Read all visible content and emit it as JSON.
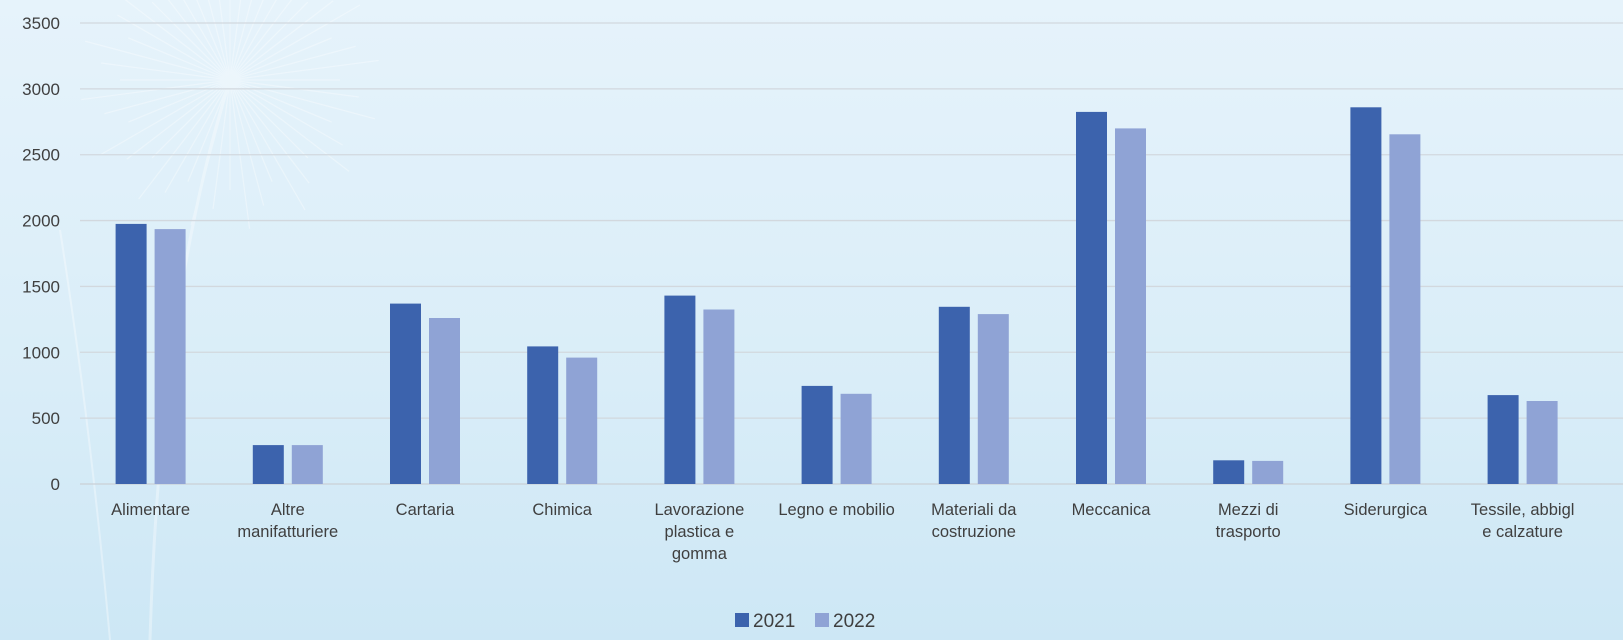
{
  "chart_data": {
    "type": "bar",
    "title": "",
    "xlabel": "",
    "ylabel": "",
    "ylim": [
      0,
      3500
    ],
    "yticks": [
      0,
      500,
      1000,
      1500,
      2000,
      2500,
      3000,
      3500
    ],
    "grid": true,
    "legend_position": "bottom",
    "categories": [
      "Alimentare",
      "Altre manifatturiere",
      "Cartaria",
      "Chimica",
      "Lavorazione plastica e gomma",
      "Legno e mobilio",
      "Materiali da costruzione",
      "Meccanica",
      "Mezzi di trasporto",
      "Siderurgica",
      "Tessile, abbigl e calzature"
    ],
    "category_label_lines": [
      [
        "Alimentare"
      ],
      [
        "Altre",
        "manifatturiere"
      ],
      [
        "Cartaria"
      ],
      [
        "Chimica"
      ],
      [
        "Lavorazione",
        "plastica e",
        "gomma"
      ],
      [
        "Legno e mobilio"
      ],
      [
        "Materiali da",
        "costruzione"
      ],
      [
        "Meccanica"
      ],
      [
        "Mezzi di",
        "trasporto"
      ],
      [
        "Siderurgica"
      ],
      [
        "Tessile, abbigl",
        "e calzature"
      ]
    ],
    "series": [
      {
        "name": "2021",
        "color": "#3c63ad",
        "values": [
          1975,
          295,
          1370,
          1045,
          1430,
          745,
          1345,
          2825,
          180,
          2860,
          675
        ]
      },
      {
        "name": "2022",
        "color": "#8fa3d5",
        "values": [
          1935,
          295,
          1260,
          960,
          1325,
          685,
          1290,
          2700,
          175,
          2655,
          630
        ]
      }
    ],
    "colors": {
      "gridline": "#d2d8de",
      "axis_line": "#c9d0d6",
      "text": "#3f3f3f"
    }
  }
}
